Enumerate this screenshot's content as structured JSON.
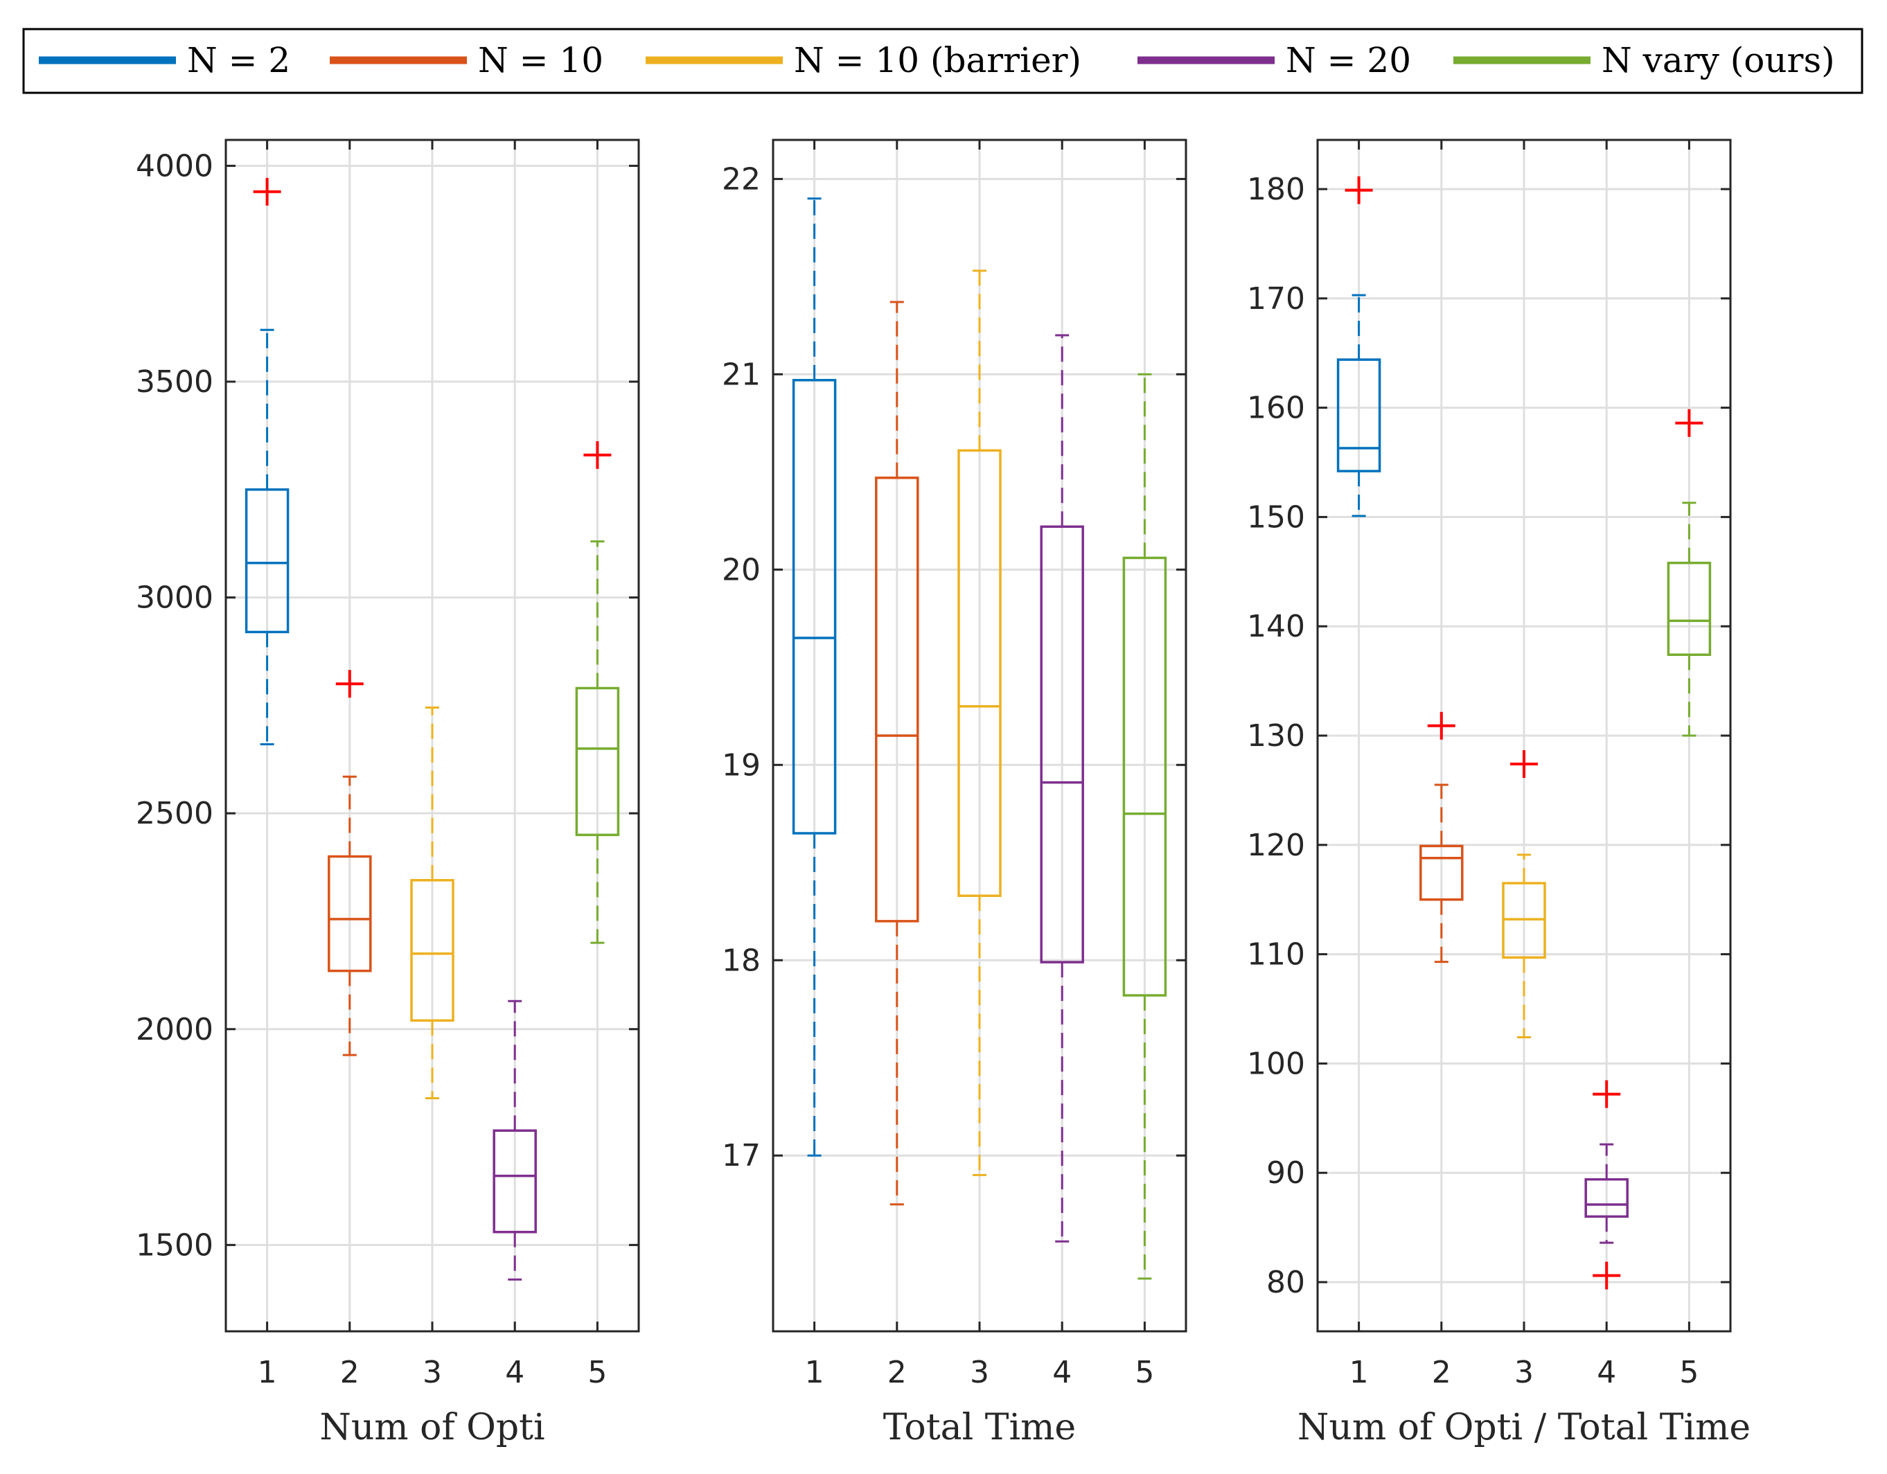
{
  "legend": {
    "entries": [
      {
        "label": "N = 2",
        "color": "#0072BD"
      },
      {
        "label": "N = 10",
        "color": "#D95319"
      },
      {
        "label": "N = 10 (barrier)",
        "color": "#EDB120"
      },
      {
        "label": "N = 20",
        "color": "#7E2F8E"
      },
      {
        "label": "N vary (ours)",
        "color": "#77AC30"
      }
    ]
  },
  "outlier_color": "#FF0000",
  "chart_data": [
    {
      "type": "box",
      "xlabel": "Num of Opti",
      "ylabel": "",
      "categories": [
        "1",
        "2",
        "3",
        "4",
        "5"
      ],
      "ylim": [
        1300,
        4060
      ],
      "yticks": [
        1500,
        2000,
        2500,
        3000,
        3500,
        4000
      ],
      "grid": true,
      "boxes": [
        {
          "q1": 2920,
          "median": 3080,
          "q3": 3250,
          "whisker_low": 2660,
          "whisker_high": 3620,
          "outliers": [
            3940
          ]
        },
        {
          "q1": 2135,
          "median": 2255,
          "q3": 2400,
          "whisker_low": 1940,
          "whisker_high": 2585,
          "outliers": [
            2800
          ]
        },
        {
          "q1": 2020,
          "median": 2175,
          "q3": 2345,
          "whisker_low": 1840,
          "whisker_high": 2745,
          "outliers": []
        },
        {
          "q1": 1530,
          "median": 1660,
          "q3": 1765,
          "whisker_low": 1420,
          "whisker_high": 2065,
          "outliers": []
        },
        {
          "q1": 2450,
          "median": 2650,
          "q3": 2790,
          "whisker_low": 2200,
          "whisker_high": 3130,
          "outliers": [
            3330
          ]
        }
      ]
    },
    {
      "type": "box",
      "xlabel": "Total Time",
      "ylabel": "",
      "categories": [
        "1",
        "2",
        "3",
        "4",
        "5"
      ],
      "ylim": [
        16.1,
        22.2
      ],
      "yticks": [
        17,
        18,
        19,
        20,
        21,
        22
      ],
      "grid": true,
      "boxes": [
        {
          "q1": 18.65,
          "median": 19.65,
          "q3": 20.97,
          "whisker_low": 17.0,
          "whisker_high": 21.9,
          "outliers": []
        },
        {
          "q1": 18.2,
          "median": 19.15,
          "q3": 20.47,
          "whisker_low": 16.75,
          "whisker_high": 21.37,
          "outliers": []
        },
        {
          "q1": 18.33,
          "median": 19.3,
          "q3": 20.61,
          "whisker_low": 16.9,
          "whisker_high": 21.53,
          "outliers": []
        },
        {
          "q1": 17.99,
          "median": 18.91,
          "q3": 20.22,
          "whisker_low": 16.56,
          "whisker_high": 21.2,
          "outliers": []
        },
        {
          "q1": 17.82,
          "median": 18.75,
          "q3": 20.06,
          "whisker_low": 16.37,
          "whisker_high": 21.0,
          "outliers": []
        }
      ]
    },
    {
      "type": "box",
      "xlabel": "Num of Opti / Total Time",
      "ylabel": "",
      "categories": [
        "1",
        "2",
        "3",
        "4",
        "5"
      ],
      "ylim": [
        75.5,
        184.5
      ],
      "yticks": [
        80,
        90,
        100,
        110,
        120,
        130,
        140,
        150,
        160,
        170,
        180
      ],
      "grid": true,
      "boxes": [
        {
          "q1": 154.2,
          "median": 156.3,
          "q3": 164.4,
          "whisker_low": 150.1,
          "whisker_high": 170.3,
          "outliers": [
            179.9
          ]
        },
        {
          "q1": 115.0,
          "median": 118.8,
          "q3": 119.9,
          "whisker_low": 109.3,
          "whisker_high": 125.5,
          "outliers": [
            130.9
          ]
        },
        {
          "q1": 109.7,
          "median": 113.2,
          "q3": 116.5,
          "whisker_low": 102.4,
          "whisker_high": 119.1,
          "outliers": [
            127.4
          ]
        },
        {
          "q1": 86.0,
          "median": 87.1,
          "q3": 89.4,
          "whisker_low": 83.6,
          "whisker_high": 92.6,
          "outliers": [
            97.2,
            80.6
          ]
        },
        {
          "q1": 137.4,
          "median": 140.5,
          "q3": 145.8,
          "whisker_low": 130.0,
          "whisker_high": 151.3,
          "outliers": [
            158.6
          ]
        }
      ]
    }
  ]
}
